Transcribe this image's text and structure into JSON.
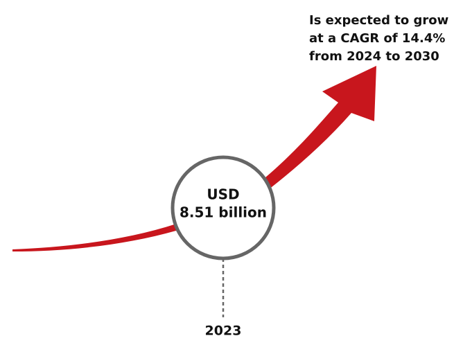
{
  "annotation": {
    "lines": [
      "Is expected to grow",
      "at a CAGR of 14.4%",
      "from 2024 to 2030"
    ]
  },
  "marker": {
    "lines": [
      "USD",
      "8.51 billion"
    ],
    "year": "2023"
  }
}
